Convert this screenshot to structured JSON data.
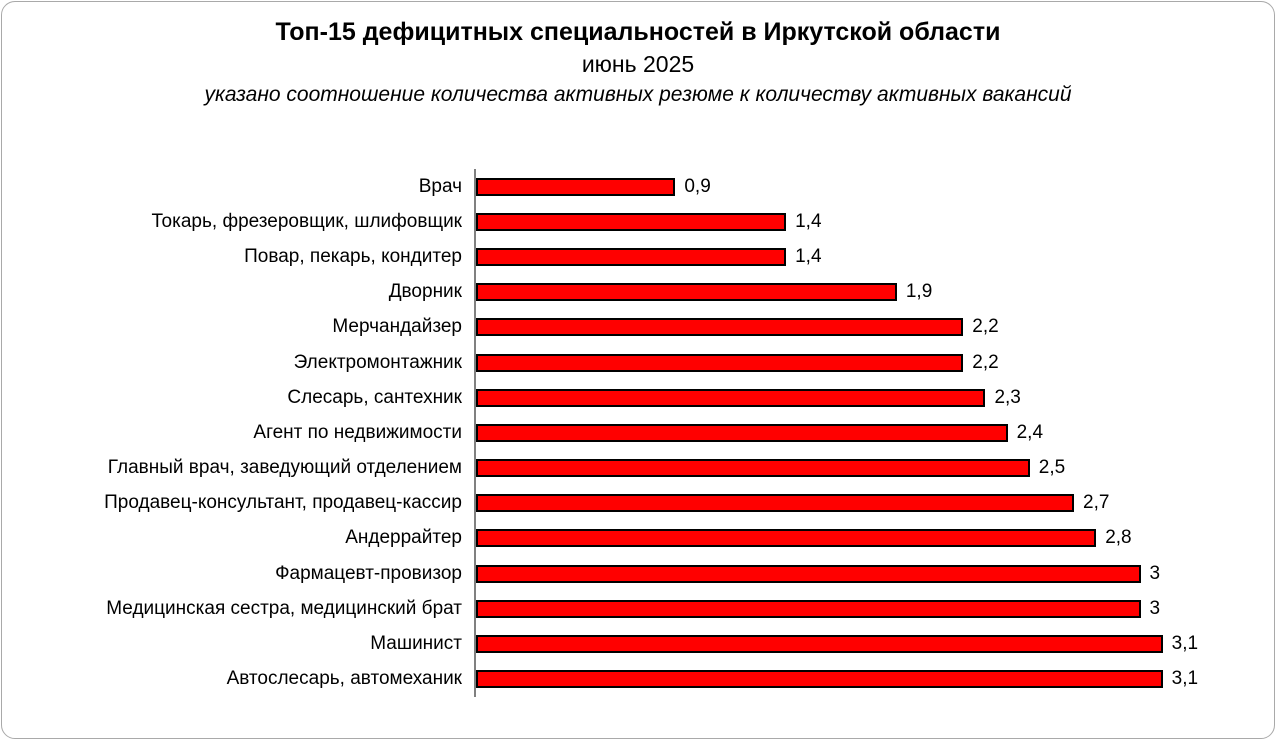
{
  "header": {
    "title": "Топ-15 дефицитных специальностей в Иркутской области",
    "subtitle": "июнь 2025",
    "note": "указано соотношение количества активных резюме к количеству активных вакансий"
  },
  "colors": {
    "bar_fill": "#ff0000",
    "bar_border": "#000000",
    "axis_line": "#808080",
    "frame_border": "#a9a9a9",
    "text": "#000000"
  },
  "chart_data": {
    "type": "bar",
    "orientation": "horizontal",
    "title": "Топ-15 дефицитных специальностей в Иркутской области",
    "subtitle": "июнь 2025",
    "annotation": "указано соотношение количества активных резюме к количеству активных вакансий",
    "xlabel": "",
    "ylabel": "",
    "xlim": [
      0,
      3.2
    ],
    "grid": false,
    "legend": false,
    "categories": [
      "Врач",
      "Токарь, фрезеровщик, шлифовщик",
      "Повар, пекарь, кондитер",
      "Дворник",
      "Мерчандайзер",
      "Электромонтажник",
      "Слесарь, сантехник",
      "Агент по недвижимости",
      "Главный врач, заведующий отделением",
      "Продавец-консультант, продавец-кассир",
      "Андеррайтер",
      "Фармацевт-провизор",
      "Медицинская сестра, медицинский брат",
      "Машинист",
      "Автослесарь, автомеханик"
    ],
    "values": [
      0.9,
      1.4,
      1.4,
      1.9,
      2.2,
      2.2,
      2.3,
      2.4,
      2.5,
      2.7,
      2.8,
      3,
      3,
      3.1,
      3.1
    ],
    "value_labels": [
      "0,9",
      "1,4",
      "1,4",
      "1,9",
      "2,2",
      "2,2",
      "2,3",
      "2,4",
      "2,5",
      "2,7",
      "2,8",
      "3",
      "3",
      "3,1",
      "3,1"
    ]
  }
}
